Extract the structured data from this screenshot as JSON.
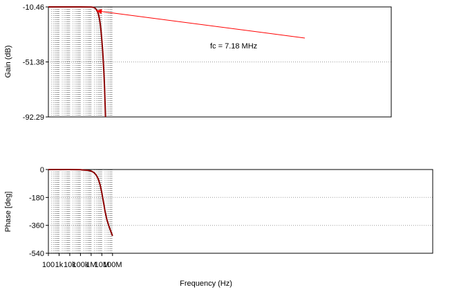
{
  "chart_data": [
    {
      "type": "line",
      "panel": "gain",
      "ylabel": "Gain (dB)",
      "xscale": "log",
      "xlim": [
        100,
        100000000
      ],
      "ylim": [
        -92.29,
        -10.46
      ],
      "yticks": [
        -10.46,
        -51.38,
        -92.29
      ],
      "ytick_labels": [
        "-10.46",
        "-51.38",
        "-92.29"
      ],
      "grid": true,
      "color": "#8b0000",
      "annotation": {
        "text": "fc = 7.18 MHz",
        "x": 7180000,
        "y": -13.5
      },
      "series": [
        {
          "x": [
            100,
            1000,
            10000,
            100000,
            1000000,
            1500000,
            2000000,
            2500000,
            3000000,
            3500000,
            4000000,
            5000000,
            6000000,
            7180000,
            8500000,
            10000000,
            12000000,
            15000000,
            18000000,
            22000000
          ],
          "y": [
            -10.46,
            -10.46,
            -10.46,
            -10.46,
            -10.5,
            -10.7,
            -11.0,
            -11.6,
            -12.3,
            -13.1,
            -14.0,
            -16.5,
            -19.5,
            -23.5,
            -28.5,
            -35.0,
            -43.5,
            -57.0,
            -71.0,
            -92.29
          ]
        }
      ]
    },
    {
      "type": "line",
      "panel": "phase",
      "xlabel": "Frequency (Hz)",
      "ylabel": "Phase [deg]",
      "xscale": "log",
      "xlim": [
        100,
        100000000
      ],
      "ylim": [
        -540,
        0
      ],
      "yticks": [
        0,
        -180,
        -360,
        -540
      ],
      "ytick_labels": [
        "0",
        "-180",
        "-360",
        "-540"
      ],
      "xticks": [
        100,
        1000,
        10000,
        100000,
        1000000,
        10000000,
        100000000
      ],
      "xtick_labels": [
        "100",
        "1k",
        "10k",
        "100k",
        "1M",
        "10M",
        "100M"
      ],
      "grid": true,
      "color": "#8b0000",
      "series": [
        {
          "x": [
            100,
            10000,
            100000,
            200000,
            500000,
            1000000,
            1500000,
            2000000,
            3000000,
            4000000,
            5000000,
            7000000,
            10000000,
            15000000,
            20000000,
            30000000,
            50000000,
            100000000
          ],
          "y": [
            0,
            0,
            -1,
            -3,
            -5,
            -10,
            -16,
            -22,
            -36,
            -52,
            -68,
            -100,
            -150,
            -220,
            -270,
            -325,
            -372,
            -428
          ]
        }
      ]
    }
  ]
}
